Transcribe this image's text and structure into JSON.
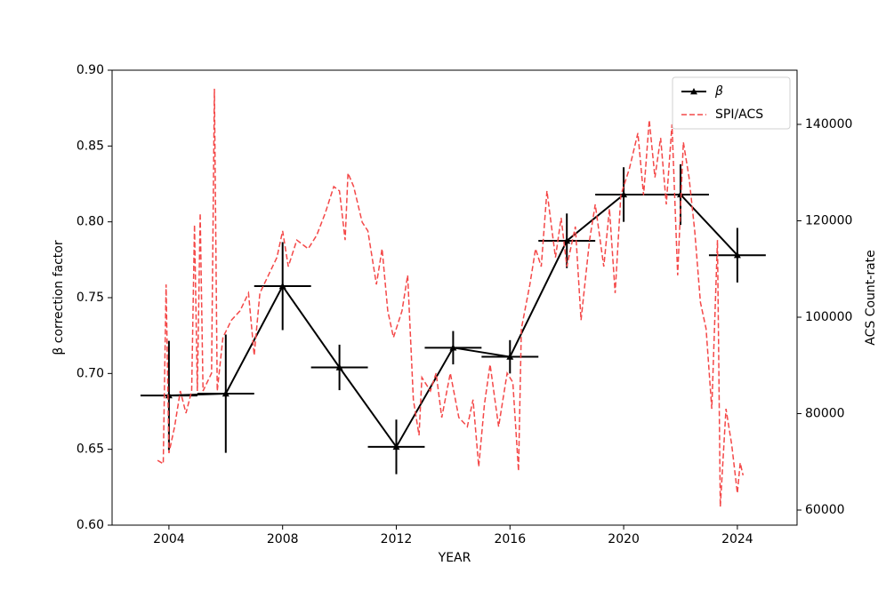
{
  "chart_data": {
    "type": "line",
    "xlabel": "YEAR",
    "ylabel": "β correction factor",
    "y2label": "ACS Count-rate",
    "xlim": [
      2002,
      2026.1
    ],
    "xticks": [
      2004,
      2008,
      2012,
      2016,
      2020,
      2024
    ],
    "ylim": [
      0.6,
      0.9
    ],
    "yticks": [
      {
        "value": 0.6,
        "label": "0.60"
      },
      0.65,
      {
        "value": 0.7,
        "label": "0.70"
      },
      0.75,
      {
        "value": 0.8,
        "label": "0.80"
      },
      0.85,
      {
        "value": 0.9,
        "label": "0.90"
      }
    ],
    "y2lim": [
      56870,
      151240
    ],
    "y2ticks": [
      60000,
      80000,
      100000,
      120000,
      140000
    ],
    "grid": false,
    "legend": "upper right",
    "series": [
      {
        "name": "β",
        "color": "#000000",
        "marker": "triangle",
        "x": [
          2004,
          2006,
          2008,
          2010,
          2012,
          2014,
          2016,
          2018,
          2020,
          2022,
          2024
        ],
        "values": [
          0.6855,
          0.6867,
          0.7576,
          0.704,
          0.6516,
          0.717,
          0.711,
          0.7875,
          0.818,
          0.818,
          0.778
        ],
        "xerr": [
          1,
          1,
          1,
          1,
          1,
          1,
          1,
          1,
          1,
          1,
          1
        ],
        "yerr": [
          0.036,
          0.039,
          0.029,
          0.015,
          0.018,
          0.011,
          0.011,
          0.018,
          0.018,
          0.02,
          0.018
        ]
      },
      {
        "name": "SPI/ACS",
        "color": "#f44848",
        "dashed": true,
        "axis": "y2",
        "x": [
          2003.6,
          2003.8,
          2003.9,
          2004.0,
          2004.2,
          2004.4,
          2004.6,
          2004.8,
          2004.9,
          2005.0,
          2005.1,
          2005.2,
          2005.5,
          2005.6,
          2005.7,
          2005.9,
          2006.2,
          2006.5,
          2006.8,
          2007.0,
          2007.2,
          2007.5,
          2007.8,
          2008.0,
          2008.2,
          2008.5,
          2008.9,
          2009.2,
          2009.5,
          2009.8,
          2010.0,
          2010.2,
          2010.3,
          2010.5,
          2010.8,
          2011.0,
          2011.3,
          2011.5,
          2011.7,
          2011.9,
          2012.2,
          2012.4,
          2012.6,
          2012.8,
          2012.9,
          2013.2,
          2013.4,
          2013.6,
          2013.9,
          2014.2,
          2014.5,
          2014.7,
          2014.9,
          2015.1,
          2015.3,
          2015.6,
          2015.9,
          2016.1,
          2016.3,
          2016.4,
          2016.7,
          2016.9,
          2017.1,
          2017.3,
          2017.6,
          2017.8,
          2018.0,
          2018.3,
          2018.5,
          2018.8,
          2019.0,
          2019.3,
          2019.5,
          2019.7,
          2019.9,
          2020.2,
          2020.5,
          2020.7,
          2020.9,
          2021.1,
          2021.3,
          2021.5,
          2021.7,
          2021.9,
          2022.1,
          2022.3,
          2022.5,
          2022.7,
          2022.9,
          2023.1,
          2023.3,
          2023.4,
          2023.6,
          2023.8,
          2024.0,
          2024.1,
          2024.2
        ],
        "values": [
          70300,
          69600,
          106800,
          71800,
          77300,
          84700,
          80100,
          84700,
          119200,
          84700,
          121600,
          84700,
          88400,
          147400,
          84700,
          95800,
          99400,
          101300,
          105000,
          92100,
          105000,
          108700,
          112400,
          117900,
          110500,
          116000,
          114200,
          117000,
          121600,
          127100,
          126200,
          116000,
          129900,
          127100,
          119700,
          117900,
          106800,
          114200,
          101300,
          95800,
          101300,
          108700,
          82900,
          75500,
          87500,
          84700,
          88400,
          79200,
          88400,
          79200,
          77300,
          82900,
          69000,
          81900,
          90200,
          77300,
          88400,
          86500,
          68100,
          97600,
          106800,
          114200,
          110500,
          126200,
          112400,
          120600,
          110500,
          118800,
          99400,
          116000,
          123400,
          110500,
          122500,
          105000,
          125300,
          130800,
          138200,
          125300,
          140900,
          129000,
          137200,
          123400,
          140000,
          108700,
          136300,
          129000,
          117900,
          103100,
          97600,
          81000,
          116000,
          60700,
          81000,
          73600,
          63500,
          69800,
          67200
        ]
      }
    ]
  }
}
